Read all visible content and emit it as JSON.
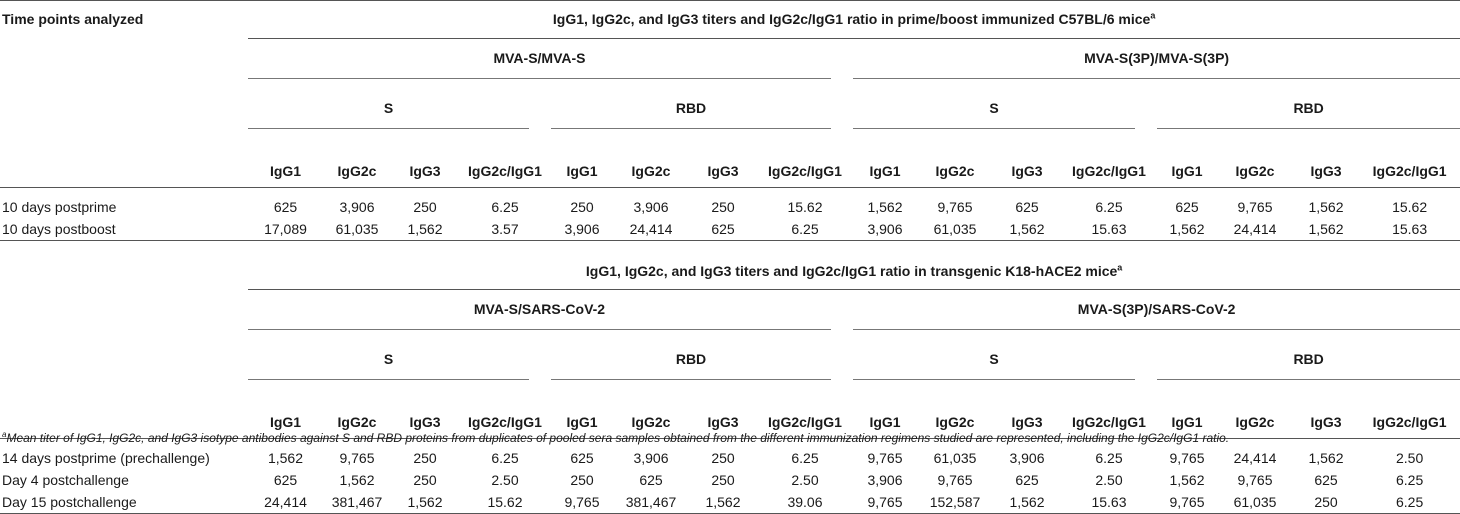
{
  "table": {
    "corner_label": "Time points analyzed",
    "panel1": {
      "title": "IgG1, IgG2c, and IgG3 titers and IgG2c/IgG1 ratio in prime/boost immunized C57BL/6 mice",
      "title_sup": "a",
      "groups": [
        "MVA-S/MVA-S",
        "MVA-S(3P)/MVA-S(3P)"
      ],
      "antigens": [
        "S",
        "RBD",
        "S",
        "RBD"
      ],
      "columns": [
        "IgG1",
        "IgG2c",
        "IgG3",
        "IgG2c/IgG1",
        "IgG1",
        "IgG2c",
        "IgG3",
        "IgG2c/IgG1",
        "IgG1",
        "IgG2c",
        "IgG3",
        "IgG2c/IgG1",
        "IgG1",
        "IgG2c",
        "IgG3",
        "IgG2c/IgG1"
      ],
      "rows": [
        {
          "label": "10 days postprime",
          "values": [
            "625",
            "3,906",
            "250",
            "6.25",
            "250",
            "3,906",
            "250",
            "15.62",
            "1,562",
            "9,765",
            "625",
            "6.25",
            "625",
            "9,765",
            "1,562",
            "15.62"
          ]
        },
        {
          "label": "10 days postboost",
          "values": [
            "17,089",
            "61,035",
            "1,562",
            "3.57",
            "3,906",
            "24,414",
            "625",
            "6.25",
            "3,906",
            "61,035",
            "1,562",
            "15.63",
            "1,562",
            "24,414",
            "1,562",
            "15.63"
          ]
        }
      ]
    },
    "panel2": {
      "title": "IgG1, IgG2c, and IgG3 titers and IgG2c/IgG1 ratio in transgenic K18-hACE2 mice",
      "title_sup": "a",
      "groups": [
        "MVA-S/SARS-CoV-2",
        "MVA-S(3P)/SARS-CoV-2"
      ],
      "antigens": [
        "S",
        "RBD",
        "S",
        "RBD"
      ],
      "columns": [
        "IgG1",
        "IgG2c",
        "IgG3",
        "IgG2c/IgG1",
        "IgG1",
        "IgG2c",
        "IgG3",
        "IgG2c/IgG1",
        "IgG1",
        "IgG2c",
        "IgG3",
        "IgG2c/IgG1",
        "IgG1",
        "IgG2c",
        "IgG3",
        "IgG2c/IgG1"
      ],
      "rows": [
        {
          "label": "14 days postprime (prechallenge)",
          "values": [
            "1,562",
            "9,765",
            "250",
            "6.25",
            "625",
            "3,906",
            "250",
            "6.25",
            "9,765",
            "61,035",
            "3,906",
            "6.25",
            "9,765",
            "24,414",
            "1,562",
            "2.50"
          ]
        },
        {
          "label": "Day 4 postchallenge",
          "values": [
            "625",
            "1,562",
            "250",
            "2.50",
            "250",
            "625",
            "250",
            "2.50",
            "3,906",
            "9,765",
            "625",
            "2.50",
            "1,562",
            "9,765",
            "625",
            "6.25"
          ]
        },
        {
          "label": "Day 15 postchallenge",
          "values": [
            "24,414",
            "381,467",
            "1,562",
            "15.62",
            "9,765",
            "381,467",
            "1,562",
            "39.06",
            "9,765",
            "152,587",
            "1,562",
            "15.63",
            "9,765",
            "61,035",
            "250",
            "6.25"
          ]
        }
      ]
    },
    "footnote_sup": "a",
    "footnote": "Mean titer of IgG1, IgG2c, and IgG3 isotype antibodies against S and RBD proteins from duplicates of pooled sera samples obtained from the different immunization regimens studied are represented, including the IgG2c/IgG1 ratio."
  }
}
